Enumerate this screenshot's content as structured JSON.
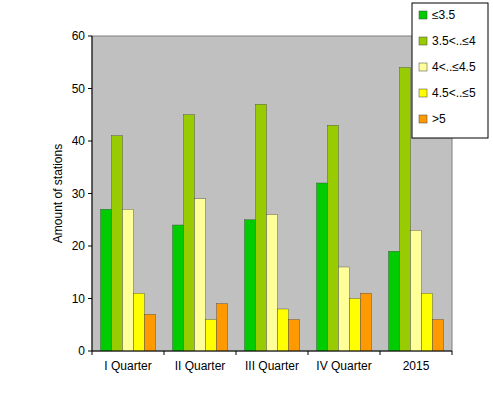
{
  "chart_data": {
    "type": "bar",
    "y_label": "Amount of stations",
    "categories": [
      "I Quarter",
      "II Quarter",
      "III Quarter",
      "IV Quarter",
      "2015"
    ],
    "series": [
      {
        "name": "≤3.5",
        "color": "#00cc00",
        "values": [
          27,
          24,
          25,
          32,
          19
        ]
      },
      {
        "name": "3.5<..≤4",
        "color": "#99cc00",
        "values": [
          41,
          45,
          47,
          43,
          54
        ]
      },
      {
        "name": "4<..≤4.5",
        "color": "#ffff99",
        "values": [
          27,
          29,
          26,
          16,
          23
        ]
      },
      {
        "name": "4.5<..≤5",
        "color": "#ffff00",
        "values": [
          11,
          6,
          8,
          10,
          11
        ]
      },
      {
        "name": ">5",
        "color": "#ff9900",
        "values": [
          7,
          9,
          6,
          11,
          6
        ]
      }
    ],
    "ylim": [
      0,
      60
    ],
    "yticks": [
      0,
      10,
      20,
      30,
      40,
      50,
      60
    ],
    "grid": false,
    "legend": "top-right"
  }
}
